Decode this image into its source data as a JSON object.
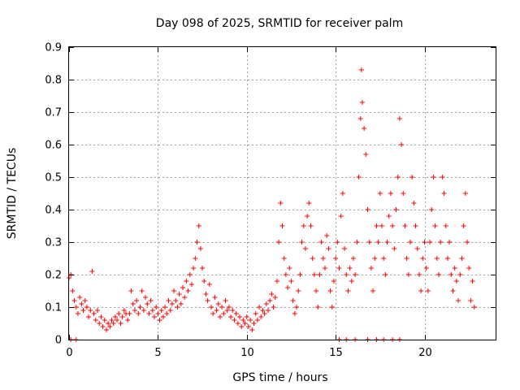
{
  "chart_data": {
    "type": "scatter",
    "title": "Day 098 of 2025, SRMTID for receiver palm",
    "xlabel": "GPS time / hours",
    "ylabel": "SRMTID / TECUs",
    "xlim": [
      0,
      24
    ],
    "ylim": [
      0,
      0.9
    ],
    "x_ticks": [
      0,
      5,
      10,
      15,
      20
    ],
    "y_ticks": [
      0,
      0.1,
      0.2,
      0.3,
      0.4,
      0.5,
      0.6,
      0.7,
      0.8,
      0.9
    ],
    "x_tick_labels": [
      "0",
      "5",
      "10",
      "15",
      "20"
    ],
    "y_tick_labels": [
      "0",
      "0.1",
      "0.2",
      "0.3",
      "0.4",
      "0.5",
      "0.6",
      "0.7",
      "0.8",
      "0.9"
    ],
    "grid": true,
    "marker": "+",
    "marker_color": "#ff0000",
    "series": [
      {
        "name": "SRMTID",
        "points": [
          [
            0.0,
            0.19
          ],
          [
            0.1,
            0.2
          ],
          [
            0.2,
            0.15
          ],
          [
            0.3,
            0.12
          ],
          [
            0.4,
            0.1
          ],
          [
            0.5,
            0.08
          ],
          [
            0.6,
            0.13
          ],
          [
            0.7,
            0.11
          ],
          [
            0.8,
            0.09
          ],
          [
            0.9,
            0.12
          ],
          [
            1.0,
            0.1
          ],
          [
            1.1,
            0.07
          ],
          [
            1.2,
            0.09
          ],
          [
            1.3,
            0.21
          ],
          [
            1.4,
            0.08
          ],
          [
            1.5,
            0.06
          ],
          [
            1.6,
            0.09
          ],
          [
            1.7,
            0.05
          ],
          [
            1.8,
            0.07
          ],
          [
            1.9,
            0.04
          ],
          [
            2.0,
            0.06
          ],
          [
            2.1,
            0.03
          ],
          [
            2.2,
            0.05
          ],
          [
            2.3,
            0.04
          ],
          [
            2.4,
            0.06
          ],
          [
            2.5,
            0.05
          ],
          [
            2.6,
            0.07
          ],
          [
            2.7,
            0.06
          ],
          [
            2.8,
            0.08
          ],
          [
            2.9,
            0.05
          ],
          [
            3.0,
            0.07
          ],
          [
            3.1,
            0.09
          ],
          [
            3.2,
            0.08
          ],
          [
            3.3,
            0.06
          ],
          [
            3.4,
            0.08
          ],
          [
            3.5,
            0.15
          ],
          [
            3.6,
            0.11
          ],
          [
            3.7,
            0.09
          ],
          [
            3.8,
            0.12
          ],
          [
            3.9,
            0.08
          ],
          [
            4.0,
            0.1
          ],
          [
            4.1,
            0.15
          ],
          [
            4.2,
            0.09
          ],
          [
            4.3,
            0.13
          ],
          [
            4.4,
            0.11
          ],
          [
            4.5,
            0.08
          ],
          [
            4.6,
            0.12
          ],
          [
            4.7,
            0.09
          ],
          [
            4.8,
            0.07
          ],
          [
            4.9,
            0.1
          ],
          [
            5.0,
            0.08
          ],
          [
            5.1,
            0.06
          ],
          [
            5.2,
            0.09
          ],
          [
            5.3,
            0.07
          ],
          [
            5.4,
            0.1
          ],
          [
            5.5,
            0.08
          ],
          [
            5.6,
            0.12
          ],
          [
            5.7,
            0.09
          ],
          [
            5.8,
            0.11
          ],
          [
            5.9,
            0.15
          ],
          [
            6.0,
            0.12
          ],
          [
            6.1,
            0.1
          ],
          [
            6.2,
            0.14
          ],
          [
            6.3,
            0.11
          ],
          [
            6.4,
            0.16
          ],
          [
            6.5,
            0.13
          ],
          [
            6.6,
            0.18
          ],
          [
            6.7,
            0.15
          ],
          [
            6.8,
            0.2
          ],
          [
            6.9,
            0.17
          ],
          [
            7.0,
            0.22
          ],
          [
            7.1,
            0.25
          ],
          [
            7.2,
            0.3
          ],
          [
            7.3,
            0.35
          ],
          [
            7.4,
            0.28
          ],
          [
            7.5,
            0.22
          ],
          [
            7.6,
            0.18
          ],
          [
            7.7,
            0.14
          ],
          [
            7.8,
            0.12
          ],
          [
            7.9,
            0.17
          ],
          [
            8.0,
            0.1
          ],
          [
            8.1,
            0.08
          ],
          [
            8.2,
            0.13
          ],
          [
            8.3,
            0.09
          ],
          [
            8.4,
            0.11
          ],
          [
            8.5,
            0.07
          ],
          [
            8.6,
            0.1
          ],
          [
            8.7,
            0.08
          ],
          [
            8.8,
            0.12
          ],
          [
            8.9,
            0.09
          ],
          [
            9.0,
            0.1
          ],
          [
            9.1,
            0.07
          ],
          [
            9.2,
            0.09
          ],
          [
            9.3,
            0.06
          ],
          [
            9.4,
            0.08
          ],
          [
            9.5,
            0.05
          ],
          [
            9.6,
            0.07
          ],
          [
            9.7,
            0.04
          ],
          [
            9.8,
            0.06
          ],
          [
            9.9,
            0.05
          ],
          [
            10.0,
            0.07
          ],
          [
            10.1,
            0.04
          ],
          [
            10.2,
            0.06
          ],
          [
            10.3,
            0.03
          ],
          [
            10.4,
            0.05
          ],
          [
            10.5,
            0.08
          ],
          [
            10.6,
            0.06
          ],
          [
            10.7,
            0.1
          ],
          [
            10.8,
            0.07
          ],
          [
            10.9,
            0.09
          ],
          [
            11.0,
            0.08
          ],
          [
            11.1,
            0.11
          ],
          [
            11.2,
            0.09
          ],
          [
            11.3,
            0.12
          ],
          [
            11.4,
            0.14
          ],
          [
            11.5,
            0.1
          ],
          [
            11.6,
            0.13
          ],
          [
            11.7,
            0.18
          ],
          [
            11.8,
            0.3
          ],
          [
            11.9,
            0.42
          ],
          [
            12.0,
            0.35
          ],
          [
            12.1,
            0.25
          ],
          [
            12.2,
            0.2
          ],
          [
            12.3,
            0.16
          ],
          [
            12.4,
            0.22
          ],
          [
            12.5,
            0.18
          ],
          [
            12.6,
            0.12
          ],
          [
            12.7,
            0.08
          ],
          [
            12.8,
            0.1
          ],
          [
            12.9,
            0.15
          ],
          [
            13.0,
            0.2
          ],
          [
            13.1,
            0.3
          ],
          [
            13.2,
            0.35
          ],
          [
            13.3,
            0.28
          ],
          [
            13.4,
            0.38
          ],
          [
            13.5,
            0.42
          ],
          [
            13.6,
            0.35
          ],
          [
            13.7,
            0.25
          ],
          [
            13.8,
            0.2
          ],
          [
            13.9,
            0.15
          ],
          [
            14.0,
            0.1
          ],
          [
            14.1,
            0.2
          ],
          [
            14.2,
            0.3
          ],
          [
            14.3,
            0.25
          ],
          [
            14.4,
            0.22
          ],
          [
            14.5,
            0.32
          ],
          [
            14.6,
            0.28
          ],
          [
            14.7,
            0.15
          ],
          [
            14.8,
            0.1
          ],
          [
            14.9,
            0.18
          ],
          [
            15.0,
            0.25
          ],
          [
            15.1,
            0.3
          ],
          [
            15.2,
            0.22
          ],
          [
            15.3,
            0.38
          ],
          [
            15.4,
            0.45
          ],
          [
            15.5,
            0.28
          ],
          [
            15.6,
            0.2
          ],
          [
            15.7,
            0.15
          ],
          [
            15.8,
            0.22
          ],
          [
            15.9,
            0.18
          ],
          [
            16.0,
            0.25
          ],
          [
            16.1,
            0.2
          ],
          [
            16.2,
            0.3
          ],
          [
            16.3,
            0.5
          ],
          [
            16.4,
            0.68
          ],
          [
            16.45,
            0.83
          ],
          [
            16.5,
            0.73
          ],
          [
            16.6,
            0.65
          ],
          [
            16.7,
            0.57
          ],
          [
            16.8,
            0.4
          ],
          [
            16.9,
            0.3
          ],
          [
            17.0,
            0.22
          ],
          [
            17.1,
            0.15
          ],
          [
            17.2,
            0.25
          ],
          [
            17.3,
            0.35
          ],
          [
            17.4,
            0.3
          ],
          [
            17.5,
            0.45
          ],
          [
            17.6,
            0.35
          ],
          [
            17.7,
            0.25
          ],
          [
            17.8,
            0.2
          ],
          [
            17.9,
            0.3
          ],
          [
            18.0,
            0.38
          ],
          [
            18.1,
            0.45
          ],
          [
            18.2,
            0.35
          ],
          [
            18.3,
            0.28
          ],
          [
            18.4,
            0.4
          ],
          [
            18.5,
            0.5
          ],
          [
            18.6,
            0.68
          ],
          [
            18.7,
            0.6
          ],
          [
            18.8,
            0.45
          ],
          [
            18.9,
            0.35
          ],
          [
            19.0,
            0.25
          ],
          [
            19.1,
            0.2
          ],
          [
            19.2,
            0.3
          ],
          [
            19.3,
            0.5
          ],
          [
            19.4,
            0.42
          ],
          [
            19.5,
            0.35
          ],
          [
            19.6,
            0.28
          ],
          [
            19.7,
            0.2
          ],
          [
            19.8,
            0.15
          ],
          [
            19.9,
            0.25
          ],
          [
            20.0,
            0.3
          ],
          [
            20.1,
            0.22
          ],
          [
            20.2,
            0.15
          ],
          [
            20.3,
            0.3
          ],
          [
            20.4,
            0.4
          ],
          [
            20.5,
            0.5
          ],
          [
            20.6,
            0.35
          ],
          [
            20.7,
            0.25
          ],
          [
            20.8,
            0.2
          ],
          [
            20.9,
            0.3
          ],
          [
            21.0,
            0.5
          ],
          [
            21.1,
            0.45
          ],
          [
            21.2,
            0.35
          ],
          [
            21.3,
            0.25
          ],
          [
            21.4,
            0.3
          ],
          [
            21.5,
            0.2
          ],
          [
            21.6,
            0.15
          ],
          [
            21.7,
            0.22
          ],
          [
            21.8,
            0.18
          ],
          [
            21.9,
            0.12
          ],
          [
            22.0,
            0.2
          ],
          [
            22.1,
            0.25
          ],
          [
            22.2,
            0.35
          ],
          [
            22.3,
            0.45
          ],
          [
            22.4,
            0.3
          ],
          [
            22.5,
            0.22
          ],
          [
            22.6,
            0.12
          ],
          [
            22.7,
            0.18
          ],
          [
            22.8,
            0.1
          ],
          [
            0.1,
            0.0
          ],
          [
            0.4,
            0.0
          ],
          [
            15.2,
            0.0
          ],
          [
            15.6,
            0.0
          ],
          [
            16.1,
            0.0
          ],
          [
            16.8,
            0.0
          ],
          [
            17.3,
            0.0
          ],
          [
            17.7,
            0.0
          ],
          [
            18.2,
            0.0
          ],
          [
            18.6,
            0.0
          ]
        ]
      }
    ]
  }
}
